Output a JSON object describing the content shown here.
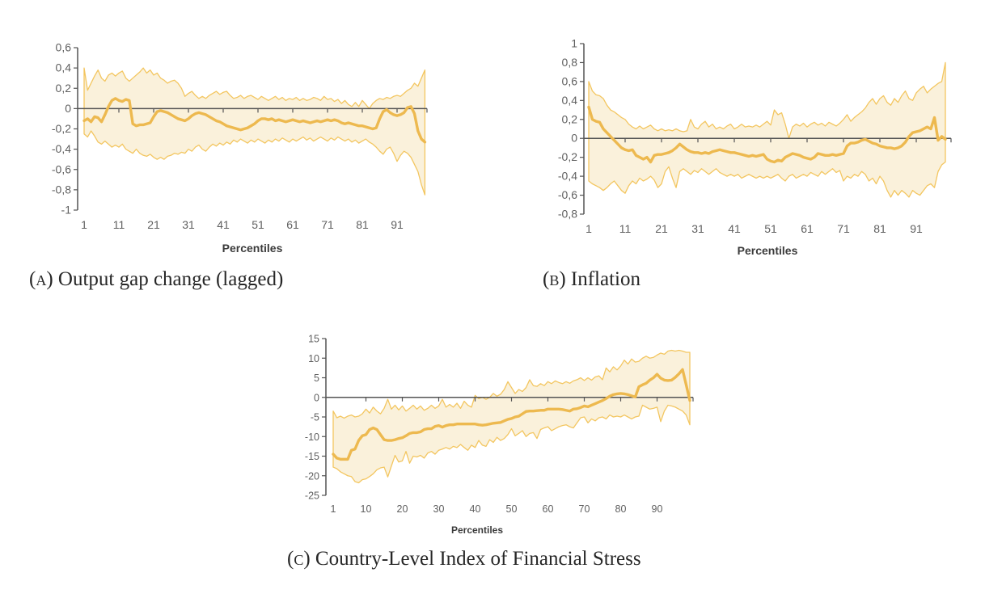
{
  "colors": {
    "mean_line": "#EDB94F",
    "band_line": "#F3C660",
    "band_fill": "#FAF1DB",
    "axis": "#545454",
    "tick_label": "#606060",
    "axis_title": "#3b3b3b",
    "caption": "#262626"
  },
  "chart_data": [
    {
      "type": "line",
      "caption_label": "(A)",
      "caption_title": "Output gap change (lagged)",
      "xlabel": "Percentiles",
      "xlim": [
        1,
        99
      ],
      "ylim": [
        -1,
        0.6
      ],
      "x_ticks": [
        1,
        11,
        21,
        31,
        41,
        51,
        61,
        71,
        81,
        91
      ],
      "y_tick_labels": [
        "0,6",
        "0,4",
        "0,2",
        "0",
        "-0,2",
        "-0,4",
        "-0,6",
        "-0,8",
        "-1"
      ],
      "y_tick_values": [
        0.6,
        0.4,
        0.2,
        0,
        -0.2,
        -0.4,
        -0.6,
        -0.8,
        -1
      ],
      "grid": false,
      "legend": false,
      "series": [
        {
          "name": "mean",
          "values": [
            -0.12,
            -0.1,
            -0.13,
            -0.08,
            -0.09,
            -0.13,
            -0.06,
            0.02,
            0.08,
            0.1,
            0.08,
            0.07,
            0.09,
            0.08,
            -0.15,
            -0.17,
            -0.16,
            -0.16,
            -0.15,
            -0.14,
            -0.08,
            -0.03,
            -0.02,
            -0.03,
            -0.04,
            -0.06,
            -0.08,
            -0.1,
            -0.11,
            -0.12,
            -0.1,
            -0.07,
            -0.05,
            -0.04,
            -0.05,
            -0.06,
            -0.08,
            -0.1,
            -0.12,
            -0.13,
            -0.15,
            -0.17,
            -0.18,
            -0.19,
            -0.2,
            -0.21,
            -0.2,
            -0.19,
            -0.17,
            -0.15,
            -0.12,
            -0.1,
            -0.1,
            -0.11,
            -0.1,
            -0.12,
            -0.11,
            -0.12,
            -0.13,
            -0.12,
            -0.11,
            -0.12,
            -0.13,
            -0.12,
            -0.13,
            -0.14,
            -0.13,
            -0.12,
            -0.13,
            -0.12,
            -0.11,
            -0.12,
            -0.11,
            -0.12,
            -0.14,
            -0.15,
            -0.14,
            -0.15,
            -0.16,
            -0.17,
            -0.17,
            -0.18,
            -0.19,
            -0.2,
            -0.19,
            -0.1,
            -0.03,
            -0.01,
            -0.04,
            -0.06,
            -0.07,
            -0.06,
            -0.04,
            0.01,
            0.02,
            -0.05,
            -0.22,
            -0.3,
            -0.33
          ]
        },
        {
          "name": "upper_band",
          "values": [
            0.4,
            0.18,
            0.25,
            0.32,
            0.38,
            0.3,
            0.27,
            0.33,
            0.35,
            0.32,
            0.35,
            0.37,
            0.3,
            0.27,
            0.3,
            0.33,
            0.36,
            0.4,
            0.35,
            0.38,
            0.33,
            0.35,
            0.3,
            0.28,
            0.25,
            0.27,
            0.28,
            0.25,
            0.2,
            0.12,
            0.15,
            0.17,
            0.13,
            0.1,
            0.12,
            0.1,
            0.13,
            0.15,
            0.17,
            0.14,
            0.16,
            0.17,
            0.13,
            0.1,
            0.11,
            0.13,
            0.1,
            0.12,
            0.13,
            0.11,
            0.09,
            0.12,
            0.1,
            0.08,
            0.1,
            0.12,
            0.09,
            0.11,
            0.08,
            0.1,
            0.09,
            0.11,
            0.08,
            0.1,
            0.08,
            0.09,
            0.11,
            0.1,
            0.08,
            0.12,
            0.09,
            0.1,
            0.07,
            0.09,
            0.05,
            0.08,
            0.04,
            0.02,
            0.06,
            0.02,
            0.08,
            0.04,
            0.0,
            0.05,
            0.08,
            0.1,
            0.09,
            0.11,
            0.1,
            0.12,
            0.13,
            0.12,
            0.15,
            0.18,
            0.2,
            0.25,
            0.22,
            0.3,
            0.38
          ]
        },
        {
          "name": "lower_band",
          "values": [
            -0.25,
            -0.28,
            -0.22,
            -0.27,
            -0.33,
            -0.35,
            -0.32,
            -0.35,
            -0.38,
            -0.36,
            -0.38,
            -0.35,
            -0.4,
            -0.42,
            -0.44,
            -0.4,
            -0.44,
            -0.46,
            -0.47,
            -0.45,
            -0.48,
            -0.5,
            -0.48,
            -0.5,
            -0.47,
            -0.46,
            -0.44,
            -0.45,
            -0.43,
            -0.44,
            -0.4,
            -0.42,
            -0.38,
            -0.36,
            -0.4,
            -0.42,
            -0.38,
            -0.35,
            -0.37,
            -0.34,
            -0.36,
            -0.33,
            -0.35,
            -0.31,
            -0.33,
            -0.3,
            -0.32,
            -0.34,
            -0.31,
            -0.33,
            -0.3,
            -0.32,
            -0.34,
            -0.31,
            -0.33,
            -0.3,
            -0.32,
            -0.29,
            -0.31,
            -0.33,
            -0.3,
            -0.32,
            -0.3,
            -0.28,
            -0.31,
            -0.29,
            -0.32,
            -0.3,
            -0.28,
            -0.3,
            -0.32,
            -0.29,
            -0.31,
            -0.28,
            -0.3,
            -0.32,
            -0.3,
            -0.33,
            -0.31,
            -0.34,
            -0.32,
            -0.3,
            -0.33,
            -0.35,
            -0.38,
            -0.42,
            -0.45,
            -0.4,
            -0.38,
            -0.44,
            -0.52,
            -0.46,
            -0.42,
            -0.44,
            -0.48,
            -0.55,
            -0.62,
            -0.75,
            -0.85
          ]
        }
      ]
    },
    {
      "type": "line",
      "caption_label": "(B)",
      "caption_title": "Inflation",
      "xlabel": "Percentiles",
      "xlim": [
        1,
        99
      ],
      "ylim": [
        -0.8,
        1
      ],
      "x_ticks": [
        1,
        11,
        21,
        31,
        41,
        51,
        61,
        71,
        81,
        91
      ],
      "y_tick_labels": [
        "1",
        "0,8",
        "0,6",
        "0,4",
        "0,2",
        "0",
        "-0,2",
        "-0,4",
        "-0,6",
        "-0,8"
      ],
      "y_tick_values": [
        1,
        0.8,
        0.6,
        0.4,
        0.2,
        0,
        -0.2,
        -0.4,
        -0.6,
        -0.8
      ],
      "grid": false,
      "legend": false,
      "series": [
        {
          "name": "mean",
          "values": [
            0.33,
            0.2,
            0.18,
            0.17,
            0.1,
            0.06,
            0.02,
            -0.02,
            -0.06,
            -0.1,
            -0.12,
            -0.13,
            -0.12,
            -0.18,
            -0.2,
            -0.22,
            -0.2,
            -0.25,
            -0.18,
            -0.17,
            -0.17,
            -0.16,
            -0.15,
            -0.13,
            -0.1,
            -0.06,
            -0.09,
            -0.12,
            -0.14,
            -0.15,
            -0.15,
            -0.16,
            -0.15,
            -0.16,
            -0.14,
            -0.13,
            -0.12,
            -0.13,
            -0.14,
            -0.15,
            -0.15,
            -0.16,
            -0.17,
            -0.18,
            -0.19,
            -0.18,
            -0.19,
            -0.18,
            -0.17,
            -0.22,
            -0.24,
            -0.25,
            -0.23,
            -0.24,
            -0.2,
            -0.18,
            -0.16,
            -0.17,
            -0.18,
            -0.2,
            -0.21,
            -0.22,
            -0.2,
            -0.16,
            -0.17,
            -0.18,
            -0.18,
            -0.17,
            -0.18,
            -0.17,
            -0.16,
            -0.08,
            -0.05,
            -0.05,
            -0.04,
            -0.02,
            -0.01,
            -0.03,
            -0.05,
            -0.06,
            -0.08,
            -0.09,
            -0.1,
            -0.1,
            -0.11,
            -0.1,
            -0.08,
            -0.04,
            0.02,
            0.06,
            0.07,
            0.08,
            0.1,
            0.12,
            0.1,
            0.22,
            -0.02,
            0.02,
            -0.01
          ]
        },
        {
          "name": "upper_band",
          "values": [
            0.6,
            0.5,
            0.46,
            0.45,
            0.42,
            0.35,
            0.3,
            0.28,
            0.25,
            0.22,
            0.2,
            0.15,
            0.12,
            0.1,
            0.13,
            0.1,
            0.12,
            0.14,
            0.1,
            0.08,
            0.1,
            0.08,
            0.09,
            0.08,
            0.1,
            0.08,
            0.07,
            0.08,
            0.2,
            0.12,
            0.1,
            0.15,
            0.18,
            0.12,
            0.15,
            0.1,
            0.12,
            0.1,
            0.13,
            0.15,
            0.1,
            0.12,
            0.15,
            0.12,
            0.13,
            0.12,
            0.14,
            0.12,
            0.15,
            0.18,
            0.14,
            0.3,
            0.25,
            0.27,
            0.15,
            0.0,
            0.12,
            0.15,
            0.13,
            0.16,
            0.12,
            0.15,
            0.17,
            0.14,
            0.16,
            0.13,
            0.17,
            0.15,
            0.13,
            0.16,
            0.2,
            0.25,
            0.18,
            0.22,
            0.25,
            0.28,
            0.32,
            0.38,
            0.42,
            0.36,
            0.42,
            0.45,
            0.38,
            0.35,
            0.42,
            0.38,
            0.45,
            0.5,
            0.42,
            0.4,
            0.48,
            0.52,
            0.55,
            0.48,
            0.52,
            0.55,
            0.58,
            0.6,
            0.8
          ]
        },
        {
          "name": "lower_band",
          "values": [
            -0.45,
            -0.48,
            -0.5,
            -0.52,
            -0.55,
            -0.52,
            -0.48,
            -0.45,
            -0.5,
            -0.55,
            -0.58,
            -0.5,
            -0.45,
            -0.48,
            -0.42,
            -0.45,
            -0.43,
            -0.4,
            -0.44,
            -0.52,
            -0.48,
            -0.35,
            -0.3,
            -0.42,
            -0.52,
            -0.35,
            -0.32,
            -0.35,
            -0.38,
            -0.34,
            -0.36,
            -0.32,
            -0.35,
            -0.38,
            -0.35,
            -0.32,
            -0.36,
            -0.38,
            -0.4,
            -0.38,
            -0.4,
            -0.38,
            -0.42,
            -0.4,
            -0.38,
            -0.4,
            -0.42,
            -0.4,
            -0.42,
            -0.4,
            -0.42,
            -0.4,
            -0.38,
            -0.42,
            -0.45,
            -0.4,
            -0.38,
            -0.42,
            -0.4,
            -0.38,
            -0.4,
            -0.36,
            -0.38,
            -0.4,
            -0.35,
            -0.38,
            -0.35,
            -0.32,
            -0.36,
            -0.34,
            -0.45,
            -0.4,
            -0.42,
            -0.38,
            -0.4,
            -0.35,
            -0.38,
            -0.45,
            -0.42,
            -0.48,
            -0.4,
            -0.45,
            -0.55,
            -0.62,
            -0.55,
            -0.6,
            -0.55,
            -0.58,
            -0.62,
            -0.55,
            -0.58,
            -0.6,
            -0.55,
            -0.5,
            -0.48,
            -0.52,
            -0.35,
            -0.28,
            -0.25
          ]
        }
      ]
    },
    {
      "type": "line",
      "caption_label": "(C)",
      "caption_title": "Country-Level Index of Financial Stress",
      "xlabel": "Percentiles",
      "xlim": [
        1,
        99
      ],
      "ylim": [
        -25,
        15
      ],
      "x_ticks": [
        1,
        10,
        20,
        30,
        40,
        50,
        60,
        70,
        80,
        90
      ],
      "y_tick_labels": [
        "15",
        "10",
        "5",
        "0",
        "-5",
        "-10",
        "-15",
        "-20",
        "-25"
      ],
      "y_tick_values": [
        15,
        10,
        5,
        0,
        -5,
        -10,
        -15,
        -20,
        -25
      ],
      "grid": false,
      "legend": false,
      "series": [
        {
          "name": "mean",
          "values": [
            -14.5,
            -15.5,
            -15.8,
            -15.8,
            -15.8,
            -13.5,
            -13.2,
            -11.0,
            -9.8,
            -9.5,
            -8.2,
            -7.8,
            -8.2,
            -9.5,
            -10.8,
            -11.0,
            -11.0,
            -10.8,
            -10.5,
            -10.3,
            -9.8,
            -9.2,
            -9.0,
            -9.0,
            -8.8,
            -8.2,
            -8.0,
            -8.0,
            -7.4,
            -7.2,
            -7.6,
            -7.2,
            -7.0,
            -7.0,
            -6.8,
            -6.8,
            -6.8,
            -6.8,
            -6.8,
            -6.8,
            -7.0,
            -7.1,
            -7.0,
            -6.8,
            -6.6,
            -6.5,
            -6.4,
            -6.0,
            -5.6,
            -5.4,
            -5.0,
            -4.8,
            -4.2,
            -3.6,
            -3.5,
            -3.5,
            -3.4,
            -3.3,
            -3.3,
            -3.0,
            -3.0,
            -3.0,
            -3.0,
            -3.1,
            -3.3,
            -3.5,
            -3.0,
            -2.9,
            -2.6,
            -2.2,
            -2.4,
            -2.0,
            -1.6,
            -1.2,
            -0.8,
            -0.3,
            0.3,
            0.7,
            0.9,
            1.0,
            0.9,
            0.7,
            0.4,
            0.1,
            2.7,
            3.2,
            3.6,
            4.4,
            5.0,
            5.9,
            4.9,
            4.4,
            4.3,
            4.4,
            5.1,
            6.0,
            7.1,
            3.2,
            -0.8
          ]
        },
        {
          "name": "upper_band",
          "values": [
            -3.5,
            -5.2,
            -4.8,
            -5.3,
            -4.8,
            -4.5,
            -5.0,
            -4.8,
            -4.2,
            -3.0,
            -4.0,
            -2.5,
            -3.5,
            -4.2,
            -2.8,
            -0.5,
            -3.0,
            -2.0,
            -3.2,
            -2.2,
            -3.5,
            -2.8,
            -2.0,
            -3.0,
            -2.2,
            -3.3,
            -2.8,
            -2.0,
            -2.8,
            -2.2,
            -0.5,
            -2.5,
            -1.8,
            -2.5,
            -1.5,
            -2.8,
            -1.0,
            -2.0,
            -2.5,
            0.5,
            -0.3,
            0.0,
            -0.5,
            0.0,
            1.0,
            0.3,
            0.8,
            2.0,
            4.0,
            2.5,
            1.0,
            2.0,
            1.5,
            2.5,
            4.5,
            3.0,
            2.8,
            3.5,
            3.0,
            4.0,
            3.5,
            4.2,
            3.8,
            3.5,
            4.0,
            3.6,
            4.2,
            4.5,
            5.0,
            4.3,
            5.0,
            4.4,
            5.2,
            5.5,
            4.5,
            7.5,
            6.5,
            7.8,
            7.0,
            8.0,
            9.5,
            8.5,
            9.8,
            9.0,
            9.2,
            10.0,
            10.5,
            10.0,
            10.2,
            10.8,
            11.3,
            11.0,
            11.8,
            12.0,
            11.8,
            12.0,
            11.8,
            11.5,
            11.5
          ]
        },
        {
          "name": "lower_band",
          "values": [
            -17.8,
            -18.2,
            -19.0,
            -19.5,
            -20.0,
            -20.2,
            -21.5,
            -21.8,
            -21.0,
            -20.8,
            -20.2,
            -19.5,
            -18.5,
            -18.0,
            -17.8,
            -20.3,
            -17.5,
            -14.8,
            -16.5,
            -16.2,
            -13.8,
            -16.8,
            -15.0,
            -15.2,
            -14.8,
            -15.5,
            -14.2,
            -13.8,
            -14.5,
            -13.5,
            -13.2,
            -12.8,
            -13.2,
            -12.5,
            -12.8,
            -12.0,
            -12.8,
            -13.5,
            -12.2,
            -12.8,
            -11.0,
            -12.2,
            -12.5,
            -10.8,
            -11.5,
            -10.2,
            -11.0,
            -10.5,
            -9.5,
            -8.0,
            -9.8,
            -9.2,
            -8.5,
            -10.0,
            -9.2,
            -9.0,
            -10.5,
            -8.2,
            -7.8,
            -7.5,
            -8.5,
            -8.0,
            -7.5,
            -7.2,
            -7.0,
            -7.5,
            -7.8,
            -6.5,
            -5.2,
            -5.0,
            -6.5,
            -5.5,
            -6.0,
            -5.2,
            -5.0,
            -5.5,
            -4.5,
            -5.0,
            -4.8,
            -5.0,
            -4.5,
            -5.0,
            -5.5,
            -5.0,
            -4.8,
            -2.0,
            -2.5,
            -3.0,
            -2.8,
            -2.5,
            -6.2,
            -3.5,
            -2.0,
            -2.2,
            -2.5,
            -3.0,
            -3.5,
            -4.5,
            -7.0
          ]
        }
      ]
    }
  ]
}
